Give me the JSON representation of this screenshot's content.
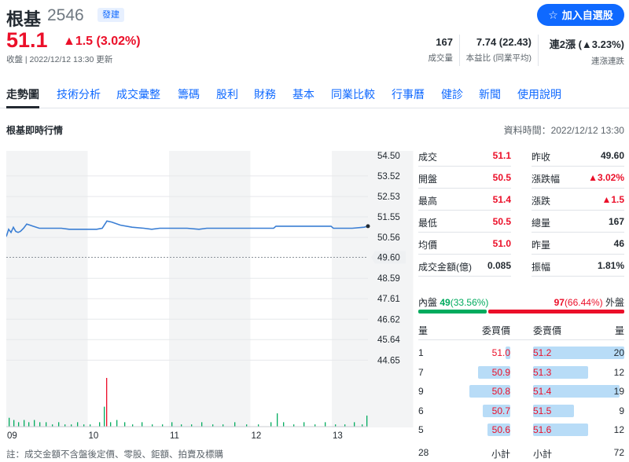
{
  "header": {
    "name": "根基",
    "code": "2546",
    "market": "發建",
    "follow_label": "加入自選股",
    "price": "51.1",
    "change": "▲1.5 (3.02%)",
    "status": "收盤 | 2022/12/12 13:30 更新"
  },
  "stats": [
    {
      "value": "167",
      "label": "成交量"
    },
    {
      "value": "7.74 (22.43)",
      "label": "本益比 (同業平均)"
    },
    {
      "value": "連2漲 (▲3.23%)",
      "label": "連漲連跌"
    }
  ],
  "tabs": [
    "走勢圖",
    "技術分析",
    "成交彙整",
    "籌碼",
    "股利",
    "財務",
    "基本",
    "同業比較",
    "行事曆",
    "健診",
    "新聞",
    "使用說明"
  ],
  "section": {
    "title": "根基即時行情",
    "time": "資料時間：2022/12/12 13:30"
  },
  "quote_left": [
    {
      "k": "成交",
      "v": "51.1",
      "c": "up"
    },
    {
      "k": "開盤",
      "v": "50.5",
      "c": "up"
    },
    {
      "k": "最高",
      "v": "51.4",
      "c": "up"
    },
    {
      "k": "最低",
      "v": "50.5",
      "c": "up"
    },
    {
      "k": "均價",
      "v": "51.0",
      "c": "up"
    },
    {
      "k": "成交金額(億)",
      "v": "0.085",
      "c": ""
    }
  ],
  "quote_right": [
    {
      "k": "昨收",
      "v": "49.60",
      "c": ""
    },
    {
      "k": "漲跌幅",
      "v": "▲3.02%",
      "c": "up"
    },
    {
      "k": "漲跌",
      "v": "▲1.5",
      "c": "up"
    },
    {
      "k": "總量",
      "v": "167",
      "c": ""
    },
    {
      "k": "昨量",
      "v": "46",
      "c": ""
    },
    {
      "k": "振幅",
      "v": "1.81%",
      "c": ""
    }
  ],
  "inout": {
    "in_label": "內盤",
    "in_value": "49",
    "in_pct": "(33.56%)",
    "out_value": "97",
    "out_pct": "(66.44%)",
    "out_label": "外盤",
    "in_fraction": 0.3356
  },
  "orderbook": {
    "headers": {
      "qty": "量",
      "bid": "委買價",
      "ask": "委賣價",
      "qty2": "量"
    },
    "rows": [
      {
        "bid_qty": "1",
        "bid": "51.0",
        "ask": "51.2",
        "ask_qty": "20"
      },
      {
        "bid_qty": "7",
        "bid": "50.9",
        "ask": "51.3",
        "ask_qty": "12"
      },
      {
        "bid_qty": "9",
        "bid": "50.8",
        "ask": "51.4",
        "ask_qty": "19"
      },
      {
        "bid_qty": "6",
        "bid": "50.7",
        "ask": "51.5",
        "ask_qty": "9"
      },
      {
        "bid_qty": "5",
        "bid": "50.6",
        "ask": "51.6",
        "ask_qty": "12"
      }
    ],
    "total": {
      "bid_qty": "28",
      "bid_label": "小計",
      "ask_label": "小計",
      "ask_qty": "72"
    }
  },
  "note": "註：成交金額不含盤後定價、零股、鉅額、拍賣及標購",
  "chart_data": {
    "type": "line",
    "x_ticks": [
      "09",
      "10",
      "11",
      "12",
      "13"
    ],
    "y_ticks": [
      "54.50",
      "53.52",
      "52.53",
      "51.55",
      "50.56",
      "49.60",
      "48.59",
      "47.61",
      "46.62",
      "45.64",
      "44.65"
    ],
    "prev_close": 49.6,
    "prev_close_label": "49.60",
    "ylim": [
      43.68,
      54.5
    ],
    "price_series": [
      [
        0,
        50.6
      ],
      [
        3,
        50.95
      ],
      [
        6,
        50.8
      ],
      [
        9,
        51.05
      ],
      [
        12,
        50.85
      ],
      [
        15,
        50.8
      ],
      [
        18,
        50.85
      ],
      [
        22,
        51.0
      ],
      [
        26,
        51.2
      ],
      [
        30,
        51.15
      ],
      [
        34,
        51.1
      ],
      [
        42,
        51.0
      ],
      [
        50,
        51.0
      ],
      [
        60,
        51.0
      ],
      [
        70,
        51.0
      ],
      [
        80,
        50.95
      ],
      [
        100,
        50.95
      ],
      [
        115,
        50.95
      ],
      [
        122,
        51.0
      ],
      [
        128,
        51.35
      ],
      [
        134,
        51.3
      ],
      [
        145,
        51.15
      ],
      [
        160,
        51.05
      ],
      [
        175,
        51.0
      ],
      [
        185,
        50.95
      ],
      [
        195,
        51.0
      ],
      [
        210,
        51.0
      ],
      [
        230,
        51.0
      ],
      [
        245,
        50.95
      ],
      [
        255,
        51.0
      ],
      [
        275,
        51.0
      ],
      [
        300,
        51.0
      ],
      [
        320,
        51.0
      ],
      [
        340,
        51.0
      ],
      [
        343,
        51.1
      ],
      [
        360,
        51.1
      ],
      [
        380,
        51.1
      ],
      [
        400,
        51.1
      ],
      [
        413,
        51.1
      ],
      [
        416,
        51.0
      ],
      [
        425,
        51.0
      ],
      [
        440,
        51.0
      ],
      [
        455,
        51.05
      ],
      [
        460,
        51.1
      ]
    ],
    "volume_series": [
      [
        3,
        4
      ],
      [
        9,
        3
      ],
      [
        15,
        2
      ],
      [
        22,
        3
      ],
      [
        28,
        2
      ],
      [
        35,
        3
      ],
      [
        42,
        2
      ],
      [
        50,
        2
      ],
      [
        58,
        1
      ],
      [
        66,
        2
      ],
      [
        74,
        1
      ],
      [
        82,
        1
      ],
      [
        90,
        2
      ],
      [
        98,
        1
      ],
      [
        106,
        1
      ],
      [
        118,
        2
      ],
      [
        124,
        9
      ],
      [
        127,
        22
      ],
      [
        132,
        2
      ],
      [
        140,
        3
      ],
      [
        150,
        2
      ],
      [
        160,
        1
      ],
      [
        172,
        2
      ],
      [
        185,
        1
      ],
      [
        198,
        1
      ],
      [
        210,
        2
      ],
      [
        222,
        1
      ],
      [
        235,
        1
      ],
      [
        248,
        2
      ],
      [
        262,
        1
      ],
      [
        275,
        1
      ],
      [
        290,
        2
      ],
      [
        305,
        1
      ],
      [
        320,
        1
      ],
      [
        336,
        2
      ],
      [
        344,
        6
      ],
      [
        352,
        2
      ],
      [
        365,
        1
      ],
      [
        378,
        2
      ],
      [
        392,
        1
      ],
      [
        405,
        2
      ],
      [
        418,
        1
      ],
      [
        430,
        1
      ],
      [
        442,
        2
      ],
      [
        452,
        1
      ],
      [
        458,
        5
      ]
    ],
    "volume_colors": {
      "127": "up"
    }
  },
  "colors": {
    "up": "#eb0f29",
    "down": "#00ab5e",
    "accent": "#0f69ff",
    "line": "#3a7ed4"
  }
}
